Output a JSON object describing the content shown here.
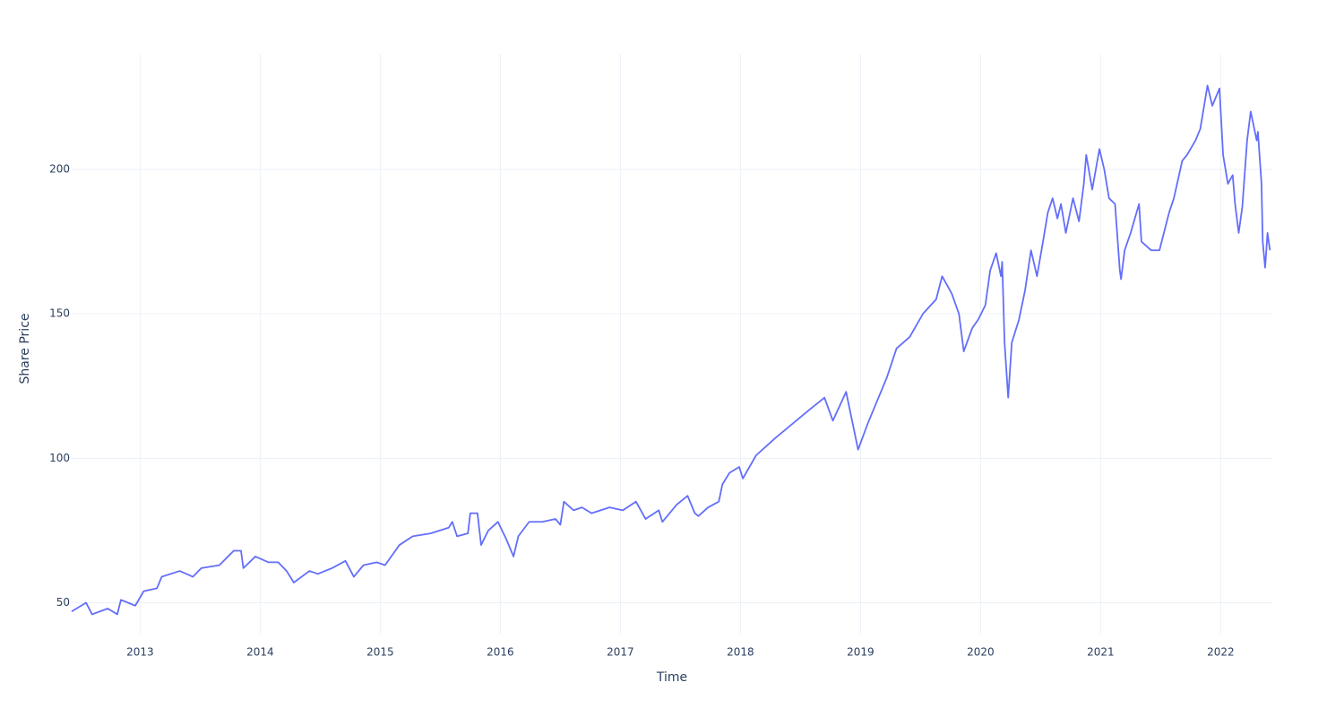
{
  "chart_data": {
    "type": "line",
    "x_label": "Time",
    "y_label": "Share Price",
    "color": "#636efa",
    "grid": true,
    "xlim": [
      2012.43,
      2022.43
    ],
    "ylim": [
      39,
      240
    ],
    "xticks": [
      2013,
      2014,
      2015,
      2016,
      2017,
      2018,
      2019,
      2020,
      2021,
      2022
    ],
    "yticks": [
      50,
      100,
      150,
      200
    ],
    "x": [
      2012.43,
      2012.55,
      2012.6,
      2012.73,
      2012.81,
      2012.84,
      2012.96,
      2013.03,
      2013.14,
      2013.18,
      2013.33,
      2013.44,
      2013.51,
      2013.66,
      2013.78,
      2013.84,
      2013.86,
      2013.96,
      2014.07,
      2014.15,
      2014.22,
      2014.28,
      2014.41,
      2014.48,
      2014.6,
      2014.71,
      2014.78,
      2014.86,
      2014.97,
      2015.04,
      2015.16,
      2015.27,
      2015.42,
      2015.57,
      2015.6,
      2015.64,
      2015.73,
      2015.75,
      2015.81,
      2015.84,
      2015.9,
      2015.98,
      2016.05,
      2016.11,
      2016.15,
      2016.24,
      2016.35,
      2016.46,
      2016.5,
      2016.53,
      2016.61,
      2016.68,
      2016.76,
      2016.91,
      2017.02,
      2017.13,
      2017.21,
      2017.32,
      2017.35,
      2017.47,
      2017.56,
      2017.62,
      2017.65,
      2017.73,
      2017.82,
      2017.85,
      2017.91,
      2017.99,
      2018.02,
      2018.13,
      2018.29,
      2018.58,
      2018.7,
      2018.77,
      2018.88,
      2018.98,
      2019.06,
      2019.22,
      2019.3,
      2019.41,
      2019.52,
      2019.63,
      2019.68,
      2019.76,
      2019.82,
      2019.86,
      2019.93,
      2019.98,
      2020.04,
      2020.08,
      2020.13,
      2020.17,
      2020.18,
      2020.2,
      2020.23,
      2020.26,
      2020.32,
      2020.37,
      2020.42,
      2020.47,
      2020.52,
      2020.56,
      2020.6,
      2020.64,
      2020.67,
      2020.71,
      2020.77,
      2020.82,
      2020.86,
      2020.88,
      2020.93,
      2020.99,
      2021.03,
      2021.07,
      2021.12,
      2021.16,
      2021.17,
      2021.2,
      2021.25,
      2021.32,
      2021.34,
      2021.42,
      2021.49,
      2021.57,
      2021.61,
      2021.68,
      2021.72,
      2021.79,
      2021.83,
      2021.89,
      2021.93,
      2021.99,
      2022.02,
      2022.06,
      2022.1,
      2022.12,
      2022.15,
      2022.18,
      2022.22,
      2022.25,
      2022.3,
      2022.31,
      2022.34,
      2022.35,
      2022.37,
      2022.39,
      2022.41
    ],
    "values": [
      47,
      50,
      46,
      48,
      46,
      51,
      49,
      54,
      55,
      59,
      61,
      59,
      62,
      63,
      68,
      68,
      62,
      66,
      64,
      64,
      61,
      57,
      61,
      60,
      62,
      64.5,
      59,
      63,
      64,
      63,
      70,
      73,
      74,
      76,
      78,
      73,
      74,
      81,
      81,
      70,
      75,
      78,
      72,
      66,
      73,
      78,
      78,
      79,
      77,
      85,
      82,
      83,
      81,
      83,
      82,
      85,
      79,
      82,
      78,
      84,
      87,
      81,
      80,
      83,
      85,
      91,
      95,
      97,
      93,
      101,
      107,
      117,
      121,
      113,
      123,
      103,
      112,
      128,
      138,
      142,
      150,
      155,
      163,
      157,
      150,
      137,
      145,
      148,
      153,
      165,
      171,
      163,
      168,
      140,
      121,
      140,
      148,
      158,
      172,
      163,
      175,
      185,
      190,
      183,
      188,
      178,
      190,
      182,
      195,
      205,
      193,
      207,
      200,
      190,
      188,
      165,
      162,
      172,
      178,
      188,
      175,
      172,
      172,
      185,
      190,
      203,
      205,
      210,
      214,
      229,
      222,
      228,
      205,
      195,
      198,
      188,
      178,
      187,
      210,
      220,
      210,
      213,
      195,
      175,
      166,
      178,
      172
    ]
  }
}
